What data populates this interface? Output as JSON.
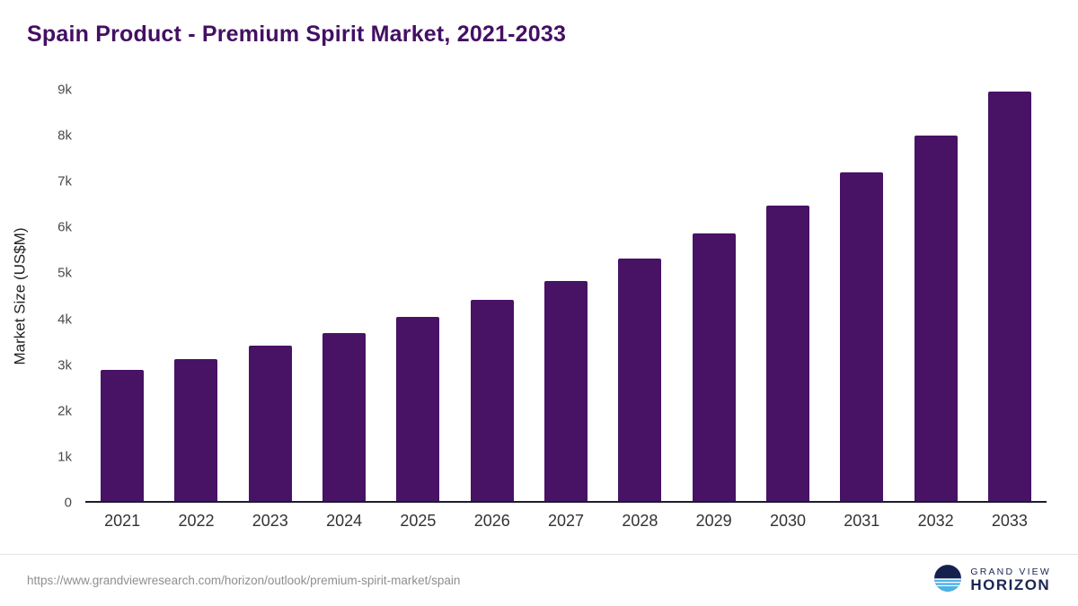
{
  "chart_data": {
    "type": "bar",
    "title": "Spain Product - Premium Spirit Market, 2021-2033",
    "xlabel": "",
    "ylabel": "Market Size (US$M)",
    "categories": [
      "2021",
      "2022",
      "2023",
      "2024",
      "2025",
      "2026",
      "2027",
      "2028",
      "2029",
      "2030",
      "2031",
      "2032",
      "2033"
    ],
    "values": [
      2875,
      3110,
      3400,
      3680,
      4020,
      4400,
      4820,
      5300,
      5850,
      6470,
      7200,
      8000,
      8970
    ],
    "ylim": [
      0,
      9000
    ],
    "ytick_labels": [
      "0",
      "1k",
      "2k",
      "3k",
      "4k",
      "5k",
      "6k",
      "7k",
      "8k",
      "9k"
    ],
    "grid": false,
    "legend": false,
    "bar_color": "#481265"
  },
  "colors": {
    "title": "#440f63",
    "bar": "#481265",
    "axis_line": "#1c1c30",
    "logo_navy": "#16204e",
    "logo_blue": "#4db3e6"
  },
  "footer": {
    "source_url": "https://www.grandviewresearch.com/horizon/outlook/premium-spirit-market/spain",
    "logo_line1": "GRAND VIEW",
    "logo_line2": "HORIZON"
  }
}
